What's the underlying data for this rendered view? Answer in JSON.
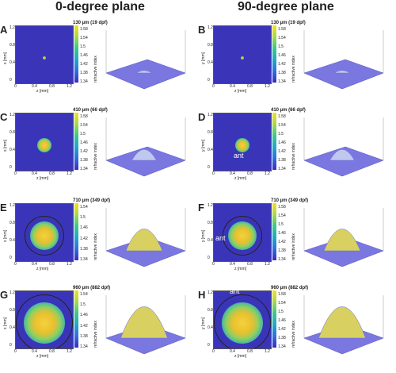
{
  "columns": [
    "0-degree plane",
    "90-degree plane"
  ],
  "rows": [
    {
      "letters": [
        "A",
        "B"
      ],
      "label": "130 µm (19 dpf)",
      "cbar": [
        "1.58",
        "1.54",
        "1.5",
        "1.46",
        "1.42",
        "1.38",
        "1.34"
      ],
      "cbar_right": [
        "1.58",
        "1.54",
        "1.5",
        "1.46",
        "1.42",
        "1.38",
        "1.34"
      ],
      "size": 0.06
    },
    {
      "letters": [
        "C",
        "D"
      ],
      "label": "410 µm (66 dpf)",
      "cbar": [
        "1.58",
        "1.54",
        "1.5",
        "1.46",
        "1.42",
        "1.38",
        "1.34"
      ],
      "cbar_right": [
        "1.58",
        "1.54",
        "1.5",
        "1.46",
        "1.42",
        "1.38",
        "1.34"
      ],
      "size": 0.25
    },
    {
      "letters": [
        "E",
        "F"
      ],
      "label": "710 µm (349 dpf)",
      "cbar": [
        "1.54",
        "1.5",
        "1.46",
        "1.42",
        "1.38",
        "1.34"
      ],
      "cbar_right": [
        "1.58",
        "1.54",
        "1.5",
        "1.46",
        "1.42",
        "1.38",
        "1.34"
      ],
      "size": 0.5
    },
    {
      "letters": [
        "G",
        "H"
      ],
      "label": "960 µm (882 dpf)",
      "cbar": [
        "1.54",
        "1.5",
        "1.46",
        "1.42",
        "1.38",
        "1.34"
      ],
      "cbar_right": [
        "1.58",
        "1.54",
        "1.5",
        "1.46",
        "1.42",
        "1.38",
        "1.34"
      ],
      "size": 0.72
    }
  ],
  "axis": {
    "yticks": [
      "1.2",
      "0.8",
      "0.4",
      "0"
    ],
    "xticks": [
      "0",
      "0.4",
      "0.8",
      "1.2"
    ],
    "left_xlabel": "z [mm]",
    "left_ylabel": "x [mm]",
    "right_xlabel": "z [mm]",
    "right_ylabel": "y [mm]",
    "zlabel": "refractive index"
  },
  "annotations": {
    "ant": "ant"
  }
}
